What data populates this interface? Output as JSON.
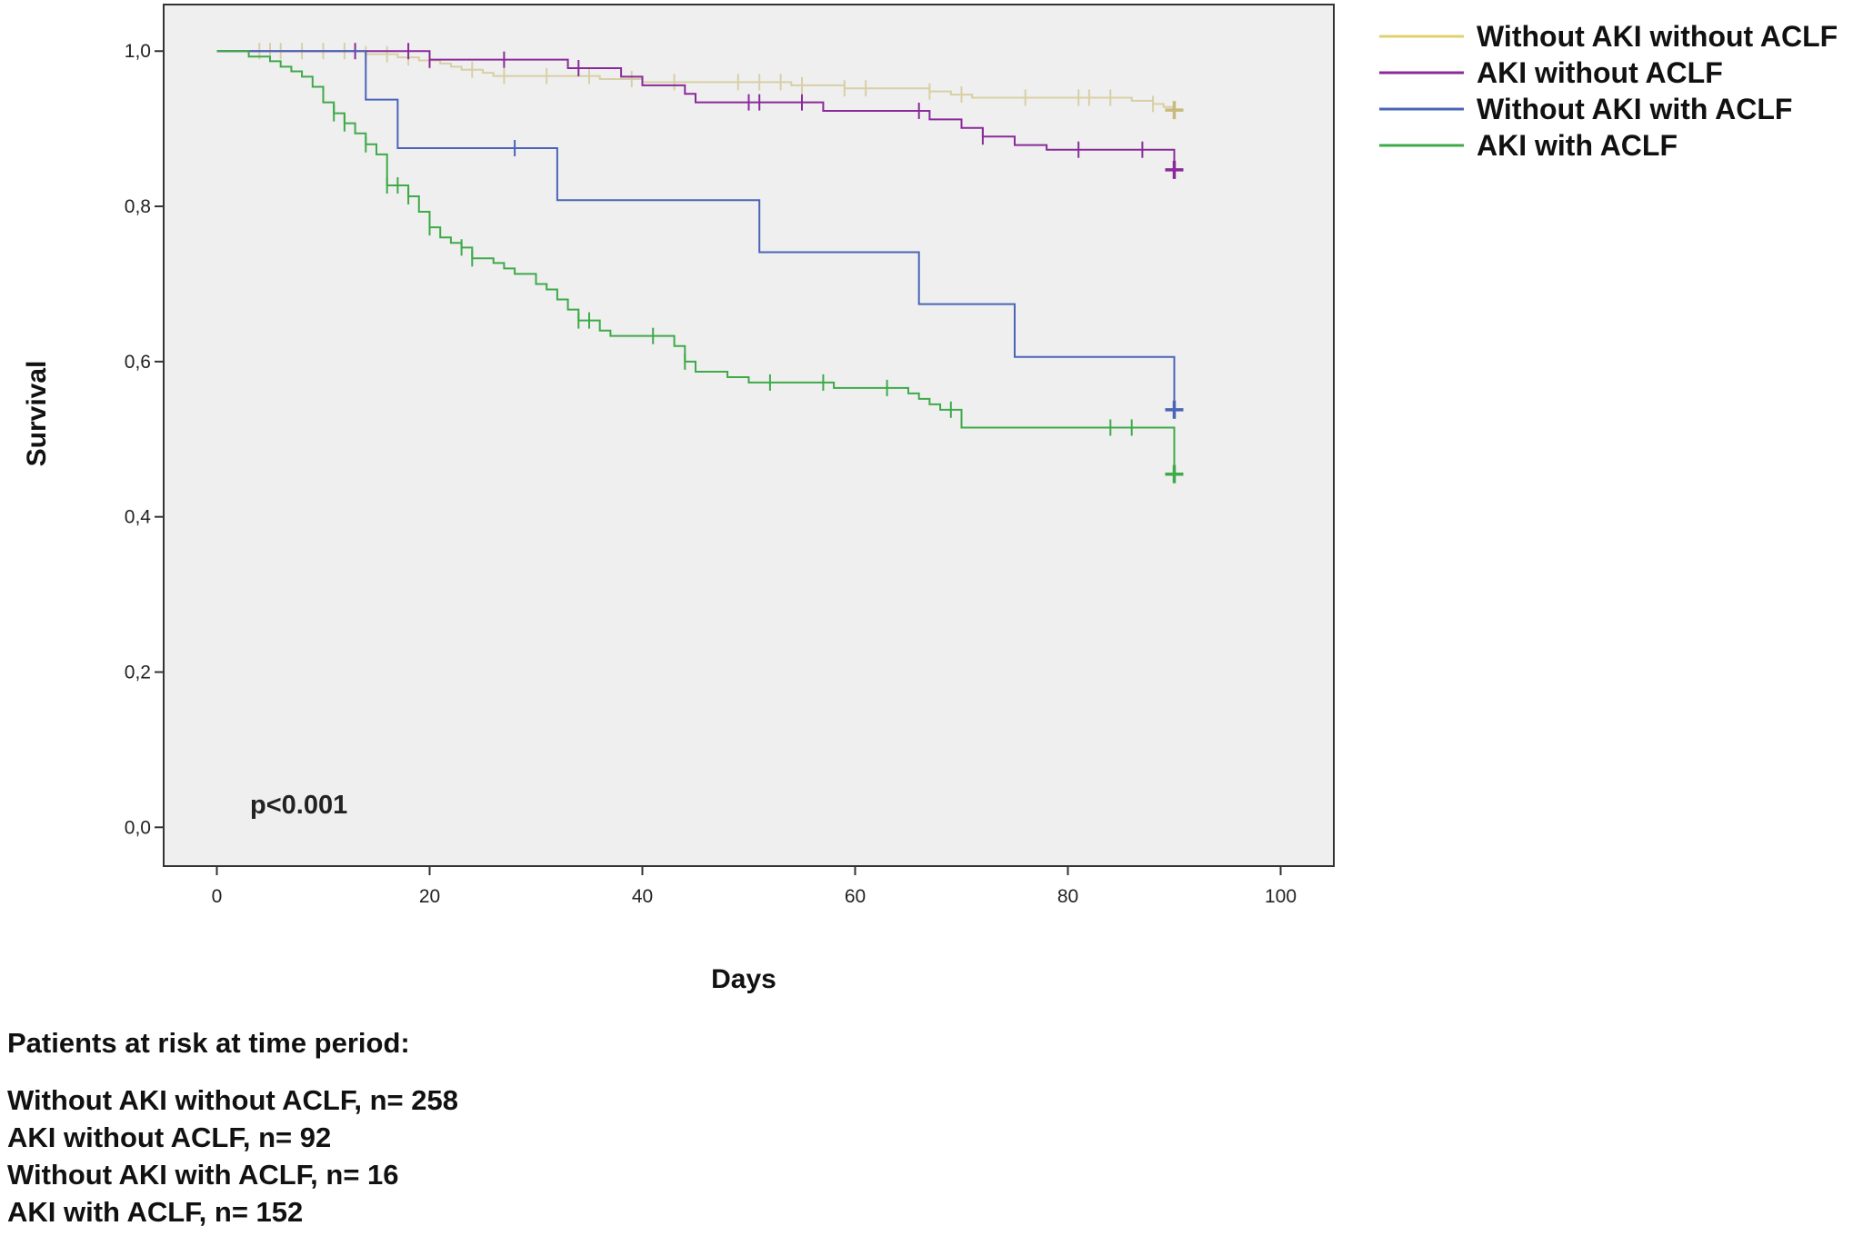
{
  "chart_data": {
    "type": "line",
    "step": true,
    "xlabel": "Days",
    "ylabel": "Survival",
    "xlim": [
      -5,
      105
    ],
    "ylim": [
      -0.05,
      1.06
    ],
    "x_ticks": [
      0,
      20,
      40,
      60,
      80,
      100
    ],
    "x_tick_labels": [
      "0",
      "20",
      "40",
      "60",
      "80",
      "100"
    ],
    "y_ticks": [
      0.0,
      0.2,
      0.4,
      0.6,
      0.8,
      1.0
    ],
    "y_tick_labels": [
      "0,0",
      "0,2",
      "0,4",
      "0,6",
      "0,8",
      "1,0"
    ],
    "grid": false,
    "legend_position": "top-right, outside plot",
    "plot_background": "#efefef",
    "annotation": "p<0.001",
    "series": [
      {
        "name": "Without AKI without ACLF",
        "color": "#e0d070",
        "curve_color": "#d8cfa6",
        "end_marker_color": "#c9b97a",
        "points": [
          [
            0,
            1.0
          ],
          [
            12,
            1.0
          ],
          [
            14,
            0.996
          ],
          [
            17,
            0.992
          ],
          [
            19,
            0.988
          ],
          [
            21,
            0.984
          ],
          [
            22,
            0.98
          ],
          [
            23,
            0.976
          ],
          [
            25,
            0.972
          ],
          [
            26,
            0.968
          ],
          [
            36,
            0.964
          ],
          [
            40,
            0.96
          ],
          [
            54,
            0.956
          ],
          [
            59,
            0.952
          ],
          [
            67,
            0.948
          ],
          [
            69,
            0.944
          ],
          [
            71,
            0.94
          ],
          [
            86,
            0.936
          ],
          [
            88,
            0.932
          ],
          [
            89,
            0.928
          ],
          [
            90,
            0.924
          ]
        ],
        "censored": [
          4,
          5,
          6,
          8,
          10,
          12,
          14,
          16,
          18,
          20,
          24,
          27,
          31,
          35,
          39,
          43,
          49,
          51,
          53,
          55,
          59,
          61,
          67,
          70,
          76,
          81,
          82,
          84,
          88,
          90
        ]
      },
      {
        "name": "AKI without ACLF",
        "color": "#8a2a9a",
        "points": [
          [
            0,
            1.0
          ],
          [
            20,
            0.989
          ],
          [
            28,
            0.989
          ],
          [
            33,
            0.978
          ],
          [
            35,
            0.978
          ],
          [
            38,
            0.967
          ],
          [
            40,
            0.956
          ],
          [
            44,
            0.945
          ],
          [
            45,
            0.934
          ],
          [
            50,
            0.934
          ],
          [
            56,
            0.934
          ],
          [
            57,
            0.923
          ],
          [
            66,
            0.923
          ],
          [
            67,
            0.912
          ],
          [
            70,
            0.901
          ],
          [
            72,
            0.89
          ],
          [
            75,
            0.879
          ],
          [
            78,
            0.873
          ],
          [
            90,
            0.873
          ],
          [
            90,
            0.847
          ]
        ],
        "censored": [
          13,
          18,
          20,
          27,
          34,
          50,
          51,
          55,
          66,
          72,
          81,
          87,
          90
        ]
      },
      {
        "name": "Without AKI with ACLF",
        "color": "#4a64b8",
        "points": [
          [
            0,
            1.0
          ],
          [
            14,
            1.0
          ],
          [
            14,
            0.9375
          ],
          [
            17,
            0.9375
          ],
          [
            17,
            0.875
          ],
          [
            32,
            0.875
          ],
          [
            32,
            0.808
          ],
          [
            51,
            0.808
          ],
          [
            51,
            0.741
          ],
          [
            66,
            0.741
          ],
          [
            66,
            0.674
          ],
          [
            75,
            0.674
          ],
          [
            75,
            0.606
          ],
          [
            90,
            0.606
          ],
          [
            90,
            0.538
          ]
        ],
        "censored": [
          28,
          90
        ]
      },
      {
        "name": "AKI with ACLF",
        "color": "#3eaa48",
        "points": [
          [
            0,
            1.0
          ],
          [
            2,
            1.0
          ],
          [
            3,
            0.993
          ],
          [
            5,
            0.987
          ],
          [
            6,
            0.98
          ],
          [
            7,
            0.974
          ],
          [
            8,
            0.967
          ],
          [
            9,
            0.954
          ],
          [
            10,
            0.934
          ],
          [
            11,
            0.92
          ],
          [
            12,
            0.907
          ],
          [
            13,
            0.894
          ],
          [
            14,
            0.88
          ],
          [
            15,
            0.867
          ],
          [
            16,
            0.827
          ],
          [
            18,
            0.813
          ],
          [
            19,
            0.793
          ],
          [
            20,
            0.773
          ],
          [
            21,
            0.76
          ],
          [
            22,
            0.753
          ],
          [
            23,
            0.747
          ],
          [
            24,
            0.733
          ],
          [
            26,
            0.727
          ],
          [
            27,
            0.72
          ],
          [
            28,
            0.713
          ],
          [
            30,
            0.7
          ],
          [
            31,
            0.693
          ],
          [
            32,
            0.68
          ],
          [
            33,
            0.667
          ],
          [
            34,
            0.653
          ],
          [
            36,
            0.64
          ],
          [
            37,
            0.633
          ],
          [
            43,
            0.62
          ],
          [
            44,
            0.6
          ],
          [
            45,
            0.587
          ],
          [
            48,
            0.58
          ],
          [
            50,
            0.573
          ],
          [
            56,
            0.573
          ],
          [
            58,
            0.566
          ],
          [
            64,
            0.566
          ],
          [
            65,
            0.559
          ],
          [
            66,
            0.552
          ],
          [
            67,
            0.545
          ],
          [
            68,
            0.538
          ],
          [
            70,
            0.515
          ],
          [
            90,
            0.515
          ],
          [
            90,
            0.455
          ]
        ],
        "censored": [
          11,
          12,
          14,
          16,
          17,
          18,
          20,
          23,
          24,
          34,
          35,
          41,
          44,
          52,
          57,
          63,
          69,
          84,
          86,
          90
        ]
      }
    ]
  },
  "risk_table": {
    "heading": "Patients at risk at time period:",
    "rows": [
      "Without AKI without ACLF, n= 258",
      "AKI without ACLF,  n= 92",
      "Without AKI with ACLF, n= 16",
      "AKI with ACLF,  n= 152"
    ]
  }
}
